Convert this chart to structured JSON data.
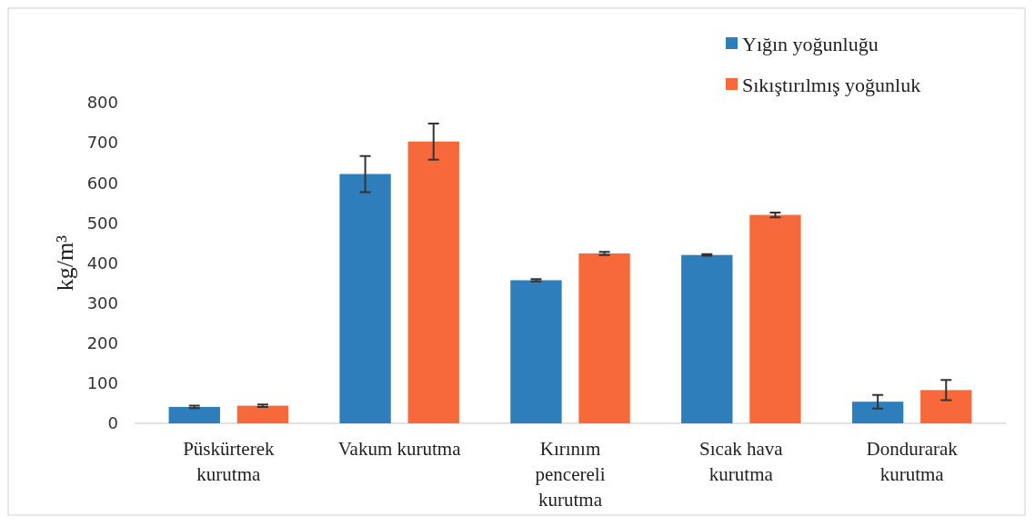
{
  "chart_data": {
    "type": "bar",
    "ylabel": "kg/m³",
    "categories": [
      "Püskürterek\nkurutma",
      "Vakum kurutma",
      "Kırınım\npencereli\nkurutma",
      "Sıcak hava\nkurutma",
      "Dondurarak\nkurutma"
    ],
    "series": [
      {
        "name": "Yığın yoğunluğu",
        "color": "#2e7ebc",
        "values": [
          41,
          622,
          357,
          420,
          54
        ],
        "errors": [
          3,
          45,
          3,
          2,
          17
        ]
      },
      {
        "name": "Sıkıştırılmış yoğunluk",
        "color": "#f7693a",
        "values": [
          44,
          703,
          424,
          520,
          83
        ],
        "errors": [
          3,
          45,
          4,
          6,
          25
        ]
      }
    ],
    "ylim": [
      0,
      800
    ],
    "yticks": [
      0,
      100,
      200,
      300,
      400,
      500,
      600,
      700,
      800
    ],
    "grid": false,
    "legend": "top right"
  }
}
